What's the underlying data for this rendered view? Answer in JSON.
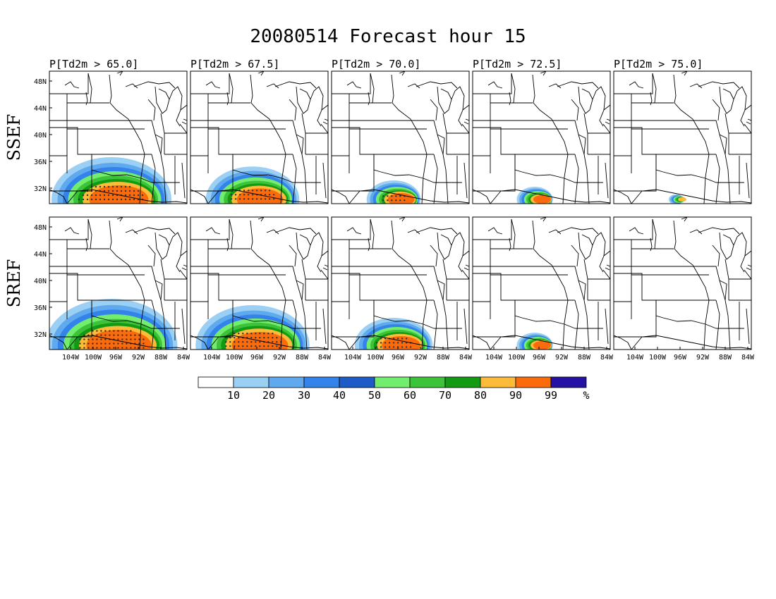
{
  "figure": {
    "title": "20080514 Forecast hour 15",
    "columns": [
      {
        "label": "P[Td2m > 65.0]"
      },
      {
        "label": "P[Td2m > 67.5]"
      },
      {
        "label": "P[Td2m > 70.0]"
      },
      {
        "label": "P[Td2m > 72.5]"
      },
      {
        "label": "P[Td2m > 75.0]"
      }
    ],
    "rows": [
      {
        "label": "SSEF",
        "intensity": [
          1.0,
          0.78,
          0.45,
          0.3,
          0.12
        ]
      },
      {
        "label": "SREF",
        "intensity": [
          1.1,
          0.95,
          0.65,
          0.3,
          0.06
        ]
      }
    ],
    "lat_ticks": [
      "48N",
      "44N",
      "40N",
      "36N",
      "32N"
    ],
    "lon_ticks": [
      "104W",
      "100W",
      "96W",
      "92W",
      "88W",
      "84W"
    ],
    "colorbar": {
      "colors": [
        "#ffffff",
        "#9ccff4",
        "#5fa9ef",
        "#3383ea",
        "#1d5cc6",
        "#73ed6d",
        "#3cc33a",
        "#139a13",
        "#fdbb3a",
        "#fb6a0b",
        "#2512a4"
      ],
      "labels": [
        "10",
        "20",
        "30",
        "40",
        "50",
        "60",
        "70",
        "80",
        "90",
        "99"
      ],
      "unit": "%"
    }
  }
}
